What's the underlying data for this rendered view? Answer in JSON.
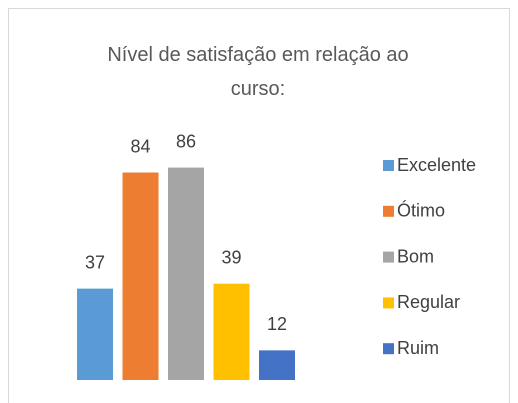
{
  "chart_data": {
    "type": "bar",
    "title": "Nível de satisfação em relação ao curso:",
    "categories": [
      null
    ],
    "series": [
      {
        "name": "Excelente",
        "color": "#5b9bd5",
        "values": [
          37
        ]
      },
      {
        "name": "Ótimo",
        "color": "#ed7d31",
        "values": [
          84
        ]
      },
      {
        "name": "Bom",
        "color": "#a5a5a5",
        "values": [
          86
        ]
      },
      {
        "name": "Regular",
        "color": "#ffc000",
        "values": [
          39
        ]
      },
      {
        "name": "Ruim",
        "color": "#4472c4",
        "values": [
          12
        ]
      }
    ],
    "ylim": [
      0,
      100
    ],
    "legend": "right"
  }
}
